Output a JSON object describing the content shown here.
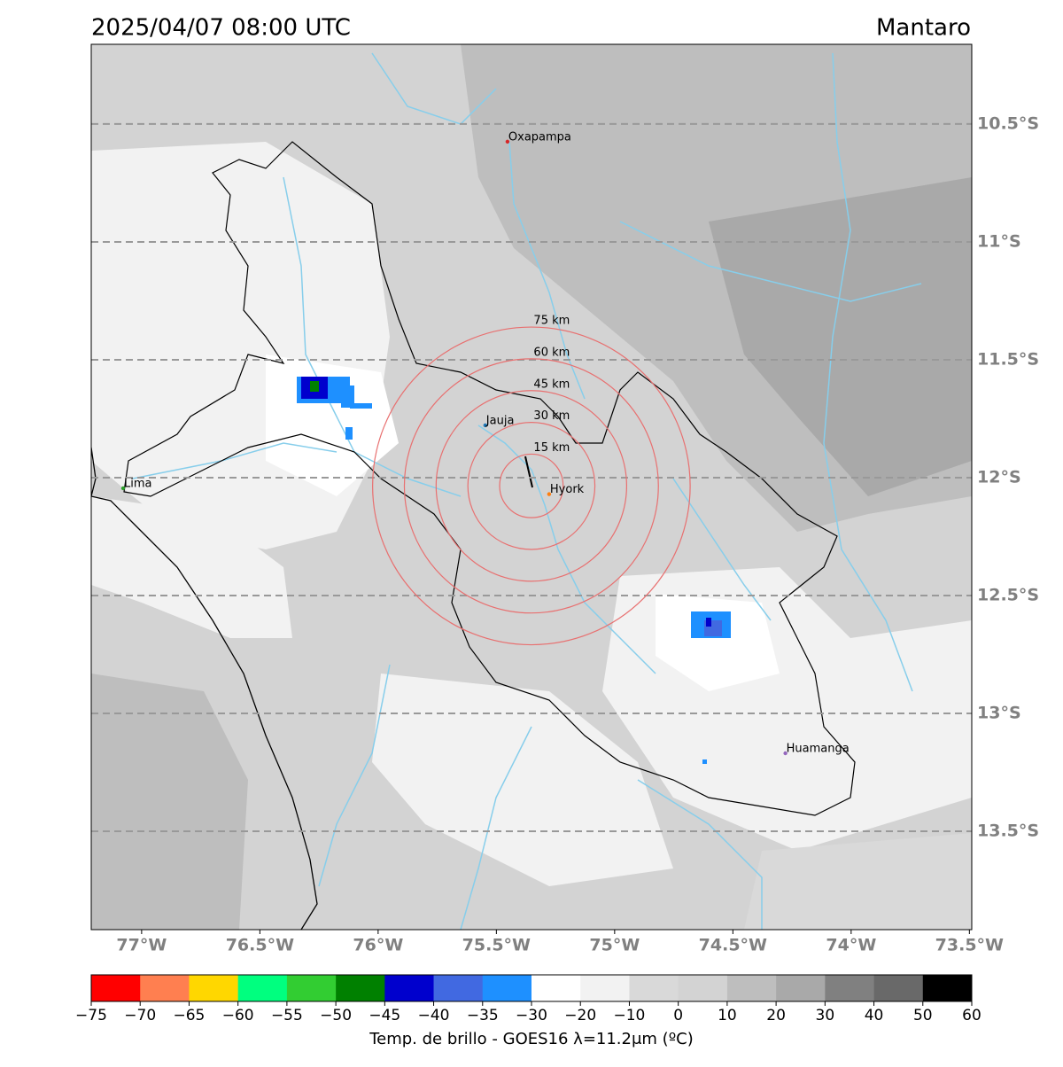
{
  "title": "2025/04/07 08:00 UTC",
  "region": "Mantaro",
  "map": {
    "xlim": [
      -77.213,
      -73.49
    ],
    "ylim": [
      -13.917,
      -10.162
    ],
    "xticks": [
      {
        "value": -77,
        "label": "77°W"
      },
      {
        "value": -76.5,
        "label": "76.5°W"
      },
      {
        "value": -76,
        "label": "76°W"
      },
      {
        "value": -75.5,
        "label": "75.5°W"
      },
      {
        "value": -75,
        "label": "75°W"
      },
      {
        "value": -74.5,
        "label": "74.5°W"
      },
      {
        "value": -74,
        "label": "74°W"
      },
      {
        "value": -73.5,
        "label": "73.5°W"
      }
    ],
    "yticks": [
      {
        "value": -10.5,
        "label": "10.5°S"
      },
      {
        "value": -11,
        "label": "11°S"
      },
      {
        "value": -11.5,
        "label": "11.5°S"
      },
      {
        "value": -12,
        "label": "12°S"
      },
      {
        "value": -12.5,
        "label": "12.5°S"
      },
      {
        "value": -13,
        "label": "13°S"
      },
      {
        "value": -13.5,
        "label": "13.5°S"
      }
    ],
    "lat_grid": true,
    "cities": [
      {
        "name": "Oxapampa",
        "lon": -75.453,
        "lat": -10.575,
        "color": "#d62728"
      },
      {
        "name": "Jauja",
        "lon": -75.547,
        "lat": -11.778,
        "color": "#1f77b4"
      },
      {
        "name": "Hyork",
        "lon": -75.277,
        "lat": -12.07,
        "color": "#ff7f0e"
      },
      {
        "name": "Lima",
        "lon": -77.078,
        "lat": -12.045,
        "color": "#2ca02c"
      },
      {
        "name": "Huamanga",
        "lon": -74.278,
        "lat": -13.169,
        "color": "#9467bd"
      }
    ],
    "ring_center": {
      "lon": -75.352,
      "lat": -12.035
    },
    "ring_color": "#e87070",
    "rings": [
      {
        "radius_km": 15,
        "label": "15 km"
      },
      {
        "radius_km": 30,
        "label": "30 km"
      },
      {
        "radius_km": 45,
        "label": "45 km"
      },
      {
        "radius_km": 60,
        "label": "60 km"
      },
      {
        "radius_km": 75,
        "label": "75 km"
      }
    ]
  },
  "colorbar": {
    "label": "Temp. de brillo - GOES16 λ=11.2μm (ºC)",
    "bounds": [
      {
        "value": -75,
        "label": "−75"
      },
      {
        "value": -70,
        "label": "−70"
      },
      {
        "value": -65,
        "label": "−65"
      },
      {
        "value": -60,
        "label": "−60"
      },
      {
        "value": -55,
        "label": "−55"
      },
      {
        "value": -50,
        "label": "−50"
      },
      {
        "value": -45,
        "label": "−45"
      },
      {
        "value": -40,
        "label": "−40"
      },
      {
        "value": -35,
        "label": "−35"
      },
      {
        "value": -30,
        "label": "−30"
      },
      {
        "value": -20,
        "label": "−20"
      },
      {
        "value": -10,
        "label": "−10"
      },
      0,
      10,
      20,
      30,
      40,
      50,
      60
    ],
    "colors": [
      "#ff0000",
      "#ff7f50",
      "#ffd700",
      "#00ff7f",
      "#32cd32",
      "#008000",
      "#0000cd",
      "#4169e1",
      "#1e90ff",
      "#ffffff",
      "#f2f2f2",
      "#d9d9d9",
      "#d3d3d3",
      "#bebebe",
      "#a9a9a9",
      "#808080",
      "#696969",
      "#000000"
    ]
  }
}
